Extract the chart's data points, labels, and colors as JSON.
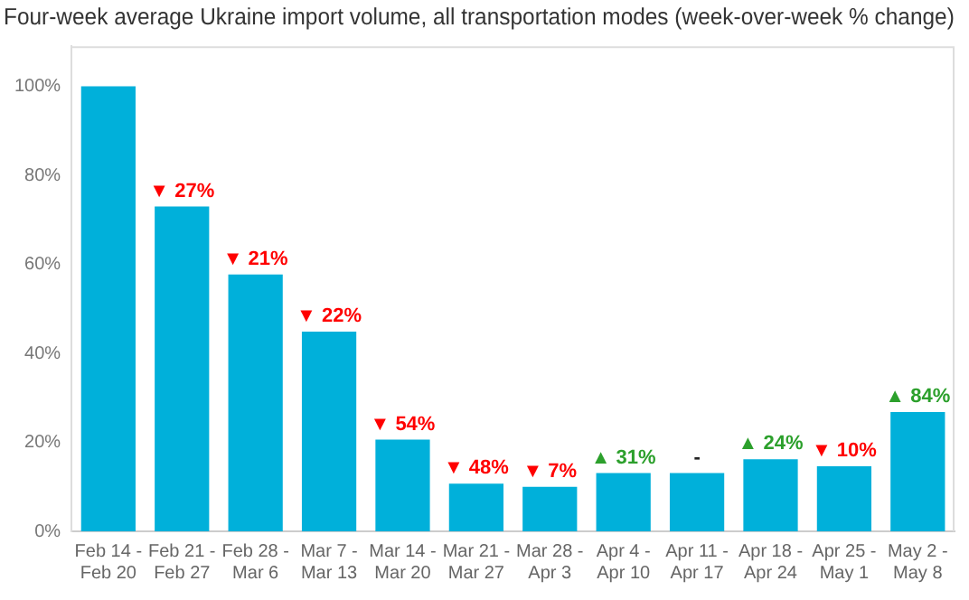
{
  "chart_data": {
    "type": "bar",
    "title": "Four-week average Ukraine import volume, all transportation modes (week-over-week % change)",
    "categories": [
      "Feb 14 - Feb 20",
      "Feb 21 - Feb 27",
      "Feb 28 - Mar 6",
      "Mar 7 - Mar 13",
      "Mar 14 - Mar 20",
      "Mar 21 - Mar 27",
      "Mar 28 - Apr 3",
      "Apr 4 - Apr 10",
      "Apr 11 - Apr 17",
      "Apr 18 - Apr 24",
      "Apr 25 - May 1",
      "May 2 - May 8"
    ],
    "values": [
      100,
      73,
      57.7,
      44.9,
      20.6,
      10.7,
      10,
      13.1,
      13.1,
      16.2,
      14.6,
      26.8
    ],
    "annotations": [
      {
        "text": "▼ 27%",
        "x": "Feb 21 - Feb 27",
        "y": 73
      },
      {
        "text": "▼ 21%",
        "x": "Feb 28 - Mar 6",
        "y": 57.7
      },
      {
        "text": "▼ 22%",
        "x": "Mar 7 - Mar 13",
        "y": 44.9
      },
      {
        "text": "▼ 54%",
        "x": "Mar 14 - Mar 20",
        "y": 20.6
      },
      {
        "text": "▼ 48%",
        "x": "Mar 21 - Mar 27",
        "y": 10.7
      },
      {
        "text": "▼ 7%",
        "x": "Mar 28 - Apr 3",
        "y": 10
      },
      {
        "text": "▲ 31%",
        "x": "Apr 4 - Apr 10",
        "y": 13.1
      },
      {
        "text": "-",
        "x": "Apr 11 - Apr 17",
        "y": 13.1
      },
      {
        "text": "▲ 24%",
        "x": "Apr 18 - Apr 24",
        "y": 16.2
      },
      {
        "text": "▼ 10%",
        "x": "Apr 25 - May 1",
        "y": 14.6
      },
      {
        "text": "▲ 84%",
        "x": "May 2 - May 8",
        "y": 26.8
      }
    ],
    "color": "#00b0da",
    "ylim": [
      0,
      109
    ],
    "yticks": [
      {
        "value": 0,
        "label": "0%"
      },
      {
        "value": 20,
        "label": "20%"
      },
      {
        "value": 40,
        "label": "40%"
      },
      {
        "value": 60,
        "label": "60%"
      },
      {
        "value": 80,
        "label": "80%"
      },
      {
        "value": 100,
        "label": "100%"
      }
    ],
    "grid": false,
    "legend": false
  }
}
